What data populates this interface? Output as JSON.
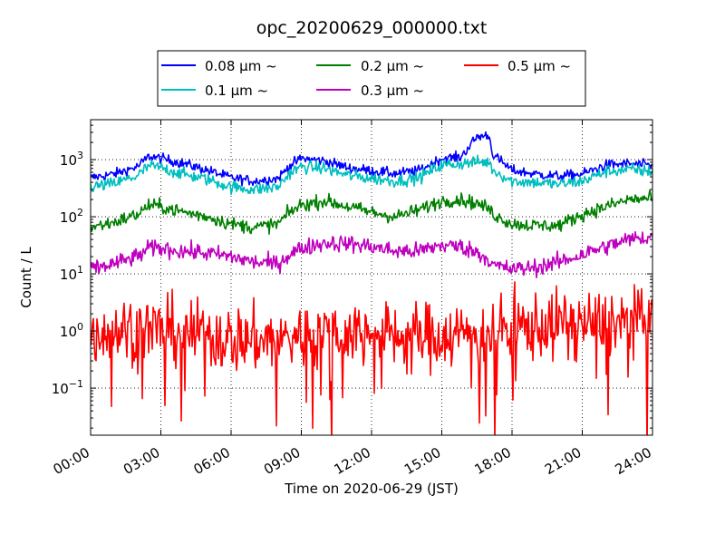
{
  "chart_data": {
    "type": "line",
    "title": "opc_20200629_000000.txt",
    "xlabel": "Time on 2020-06-29 (JST)",
    "ylabel": "Count / L",
    "xlim": [
      "2020-06-29 00:00",
      "2020-06-30 00:00"
    ],
    "ylim": [
      0.015,
      5000
    ],
    "yscale": "log",
    "grid": true,
    "legend_position": "top-center, above plot",
    "x_tick_labels": [
      "00:00",
      "03:00",
      "06:00",
      "09:00",
      "12:00",
      "15:00",
      "18:00",
      "21:00",
      "24:00"
    ],
    "y_tick_labels": [
      {
        "value": 0.1,
        "base": "10",
        "exp": "−1"
      },
      {
        "value": 1,
        "base": "10",
        "exp": "0"
      },
      {
        "value": 10,
        "base": "10",
        "exp": "1"
      },
      {
        "value": 100,
        "base": "10",
        "exp": "2"
      },
      {
        "value": 1000,
        "base": "10",
        "exp": "3"
      }
    ],
    "series": [
      {
        "name": "0.08 μm ~",
        "color": "#0000ff",
        "x_hours": [
          0,
          1,
          2,
          2.5,
          3,
          4,
          5,
          6,
          7,
          8,
          8.5,
          9,
          10,
          11,
          12,
          13,
          14,
          15,
          15.8,
          16.5,
          17,
          17.2,
          18,
          19,
          20,
          21,
          22,
          23,
          24
        ],
        "y": [
          480,
          560,
          750,
          1150,
          1050,
          850,
          650,
          480,
          420,
          470,
          780,
          1050,
          950,
          720,
          640,
          570,
          640,
          1050,
          1100,
          2500,
          2700,
          1200,
          650,
          560,
          510,
          560,
          800,
          850,
          780
        ]
      },
      {
        "name": "0.1 μm ~",
        "color": "#00bfbf",
        "x_hours": [
          0,
          1,
          2,
          2.5,
          3,
          4,
          5,
          6,
          7,
          8,
          8.5,
          9,
          10,
          11,
          12,
          13,
          14,
          15,
          15.8,
          16.5,
          17,
          17.2,
          18,
          19,
          20,
          21,
          22,
          23,
          24
        ],
        "y": [
          330,
          380,
          520,
          780,
          720,
          550,
          450,
          330,
          300,
          330,
          580,
          750,
          700,
          530,
          470,
          420,
          480,
          800,
          850,
          900,
          900,
          650,
          420,
          400,
          370,
          420,
          620,
          670,
          620
        ]
      },
      {
        "name": "0.2 μm ~",
        "color": "#008000",
        "x_hours": [
          0,
          1,
          2,
          2.5,
          3,
          4,
          5,
          6,
          7,
          8,
          8.5,
          9,
          10,
          11,
          12,
          13,
          14,
          15,
          15.8,
          16.5,
          17,
          17.2,
          18,
          19,
          20,
          21,
          22,
          23,
          24
        ],
        "y": [
          65,
          80,
          110,
          160,
          150,
          120,
          100,
          75,
          65,
          75,
          120,
          160,
          190,
          150,
          120,
          100,
          130,
          190,
          200,
          170,
          140,
          110,
          75,
          70,
          70,
          110,
          150,
          200,
          210
        ]
      },
      {
        "name": "0.3 μm ~",
        "color": "#bf00bf",
        "x_hours": [
          0,
          1,
          2,
          2.5,
          3,
          4,
          5,
          6,
          7,
          8,
          8.5,
          9,
          10,
          11,
          12,
          13,
          14,
          15,
          15.8,
          16.5,
          17,
          17.2,
          18,
          19,
          20,
          21,
          22,
          23,
          24
        ],
        "y": [
          12,
          15,
          20,
          28,
          28,
          25,
          23,
          20,
          16,
          15,
          22,
          28,
          35,
          34,
          30,
          25,
          25,
          32,
          30,
          24,
          18,
          14,
          12,
          13,
          16,
          22,
          30,
          40,
          45
        ]
      },
      {
        "name": "0.5 μm ~",
        "color": "#ff0000",
        "x_hours": [
          0,
          2,
          4,
          6,
          8,
          10,
          12,
          14,
          16,
          18,
          20,
          22,
          24
        ],
        "y": [
          1.0,
          1.1,
          1.0,
          0.7,
          0.7,
          1.0,
          0.9,
          0.8,
          0.9,
          1.1,
          1.3,
          1.4,
          1.5
        ]
      }
    ]
  }
}
